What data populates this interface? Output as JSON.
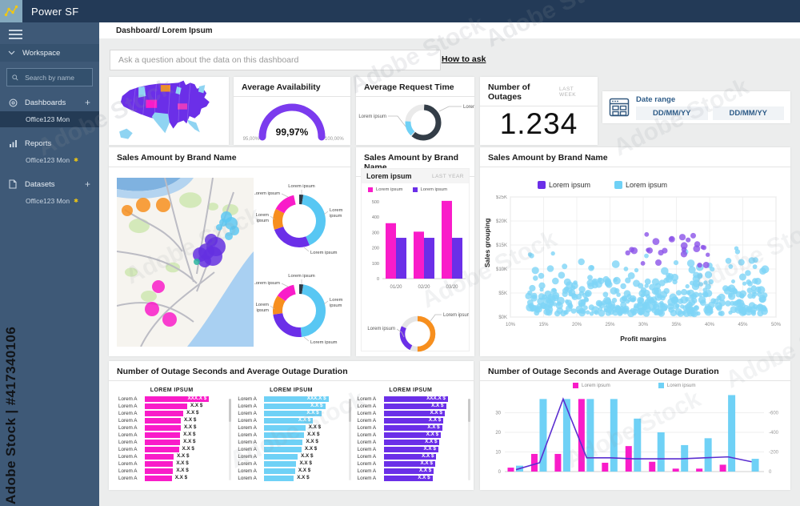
{
  "topbar": {
    "title": "Power SF"
  },
  "sidebar": {
    "workspace": "Workspace",
    "search_placeholder": "Search by name",
    "sections": [
      {
        "label": "Dashboards",
        "add": "+",
        "item": "Office123 Mon",
        "modified": ""
      },
      {
        "label": "Reports",
        "add": "",
        "item": "Office123 Mon",
        "modified": "✱"
      },
      {
        "label": "Datasets",
        "add": "+",
        "item": "Office123 Mon",
        "modified": "✱"
      }
    ]
  },
  "header": {
    "breadcrumb": "Dashboard/ Lorem Ipsum"
  },
  "qa": {
    "placeholder": "Ask a question about the data on this dashboard",
    "link_label": "How to ask"
  },
  "palette": {
    "magenta": "#F91CC9",
    "purple": "#6B2FE8",
    "light_blue": "#6FD1F6",
    "orange": "#F78F1E",
    "navy": "#2E3A46",
    "gauge_purple": "#7B3BEE",
    "line_purple": "#5B2ED0",
    "steel_blue": "#2E5C88",
    "accent_yellow": "#F2C811"
  },
  "cards": {
    "availability": {
      "title": "Average Availability",
      "value": "99,97%",
      "min": "95,00%",
      "max": "100,00%"
    },
    "request_time": {
      "title": "Average Request Time",
      "labels": [
        "Lorem ipsum",
        "Lorem ipsum"
      ],
      "slices": [
        {
          "c": "#333D47",
          "p": 60
        },
        {
          "c": "#6FD1F6",
          "p": 14
        }
      ]
    },
    "outages": {
      "title": "Number of Outages",
      "badge": "LAST WEEK",
      "value": "1.234"
    },
    "date_range": {
      "label": "Date range",
      "start_value": "DD/MM/YY",
      "end_value": "DD/MM/YY"
    },
    "sales_map": {
      "title": "Sales Amount by Brand Name",
      "bubbles": [
        {
          "x": 13,
          "y": 41,
          "r": 7,
          "c": "#F78F1E"
        },
        {
          "x": 33,
          "y": 34,
          "r": 9,
          "c": "#F78F1E"
        },
        {
          "x": 58,
          "y": 34,
          "r": 9,
          "c": "#F78F1E"
        },
        {
          "x": 137,
          "y": 49,
          "r": 7,
          "c": "#5EC8F2"
        },
        {
          "x": 143,
          "y": 57,
          "r": 8,
          "c": "#5EC8F2"
        },
        {
          "x": 133,
          "y": 56,
          "r": 5,
          "c": "#5EC8F2"
        },
        {
          "x": 147,
          "y": 66,
          "r": 6,
          "c": "#5EC8F2"
        },
        {
          "x": 140,
          "y": 73,
          "r": 5,
          "c": "#5EC8F2"
        },
        {
          "x": 128,
          "y": 62,
          "r": 4,
          "c": "#5EC8F2"
        },
        {
          "x": 118,
          "y": 78,
          "r": 8,
          "c": "#6430E0"
        },
        {
          "x": 124,
          "y": 86,
          "r": 12,
          "c": "#6430E0"
        },
        {
          "x": 112,
          "y": 92,
          "r": 10,
          "c": "#6430E0"
        },
        {
          "x": 104,
          "y": 96,
          "r": 9,
          "c": "#6430E0"
        },
        {
          "x": 120,
          "y": 98,
          "r": 12,
          "c": "#6430E0"
        },
        {
          "x": 110,
          "y": 104,
          "r": 8,
          "c": "#6430E0"
        },
        {
          "x": 100,
          "y": 105,
          "r": 4,
          "c": "#2BB5A0"
        },
        {
          "x": 52,
          "y": 136,
          "r": 8,
          "c": "#F91CC9"
        },
        {
          "x": 44,
          "y": 164,
          "r": 9,
          "c": "#F91CC9"
        },
        {
          "x": 66,
          "y": 177,
          "r": 9,
          "c": "#F91CC9"
        }
      ],
      "donuts": [
        {
          "slices": [
            {
              "c": "#2E3A46",
              "p": 2.5
            },
            {
              "c": "#58C7F3",
              "p": 41
            },
            {
              "c": "#6B2FE8",
              "p": 26
            },
            {
              "c": "#F78F1E",
              "p": 13
            },
            {
              "c": "#F91CC9",
              "p": 14
            }
          ],
          "labels": [
            "Lorem ipsum",
            "Lorem ipsum",
            "Lorem ipsum",
            "Lorem ipsum",
            "Lorem ipsum"
          ]
        },
        {
          "slices": [
            {
              "c": "#2E3A46",
              "p": 2.5
            },
            {
              "c": "#58C7F3",
              "p": 46
            },
            {
              "c": "#6B2FE8",
              "p": 24
            },
            {
              "c": "#F78F1E",
              "p": 12
            },
            {
              "c": "#F91CC9",
              "p": 12
            }
          ],
          "labels": [
            "Lorem ipsum",
            "Lorem ipsum",
            "Lorem ipsum",
            "Lorem ipsum",
            "Lorem ipsum"
          ]
        }
      ]
    },
    "sales_bar": {
      "title": "Sales Amount by Brand Name",
      "panel_title": "Lorem ipsum",
      "badge": "LAST YEAR",
      "categories": [
        "01/20",
        "02/20",
        "03/20"
      ],
      "series": [
        {
          "name": "Lorem ipsum",
          "color": "#F91CC9",
          "values": [
            360,
            305,
            505
          ]
        },
        {
          "name": "Lorem ipsum",
          "color": "#6B2FE8",
          "values": [
            265,
            265,
            265
          ]
        }
      ],
      "y_ticks": [
        0,
        100,
        200,
        300,
        400,
        500
      ],
      "y_max": 520,
      "donut": {
        "slices": [
          {
            "c": "#F78F1E",
            "p": 50,
            "s": 0
          },
          {
            "c": "#6B2FE8",
            "p": 25,
            "s": 57
          }
        ],
        "labels": [
          "Lorem ipsum",
          "Lorem ipsum"
        ]
      }
    },
    "sales_scatter": {
      "title": "Sales Amount by Brand Name",
      "legend": [
        {
          "label": "Lorem ipsum",
          "color": "#6B2FE8"
        },
        {
          "label": "Lorem ipsum",
          "color": "#6FD1F6"
        }
      ],
      "xlabel": "Profit margins",
      "ylabel": "Sales grouping",
      "x_ticks": [
        "10%",
        "15%",
        "20%",
        "25%",
        "30%",
        "35%",
        "40%",
        "45%",
        "50%"
      ],
      "y_ticks": [
        "$25K",
        "$20K",
        "$15K",
        "$10K",
        "$5K",
        "$0K"
      ],
      "x_domain": [
        10,
        50
      ],
      "y_domain": [
        0,
        25000
      ],
      "series": [
        {
          "name": "Lorem ipsum",
          "color": "#8B52E9",
          "count": 26,
          "x_range": [
            27.5,
            40
          ],
          "y_range": [
            10500,
            17200
          ],
          "r_range": [
            2.5,
            4.5
          ],
          "bias_low": false
        },
        {
          "name": "Lorem ipsum",
          "color": "#7ED5F6",
          "count": 400,
          "x_range": [
            12.5,
            48.5
          ],
          "y_range": [
            700,
            15200
          ],
          "r_range": [
            2.5,
            5
          ],
          "bias_low": true
        }
      ]
    },
    "outage_table": {
      "title": "Number of Outage Seconds and Average Outage Duration",
      "columns": [
        {
          "header": "LOREM IPSUM",
          "color": "#F91CC9",
          "rows": [
            {
              "label": "Lorem A",
              "value": "XXX.X $",
              "w": 100,
              "inside": true
            },
            {
              "label": "Lorem A",
              "value": "X.X $",
              "w": 66,
              "inside": false
            },
            {
              "label": "Lorem A",
              "value": "X.X $",
              "w": 60,
              "inside": false
            },
            {
              "label": "Lorem A",
              "value": "X.X $",
              "w": 56,
              "inside": false
            },
            {
              "label": "Lorem A",
              "value": "X.X $",
              "w": 56,
              "inside": false
            },
            {
              "label": "Lorem A",
              "value": "X.X $",
              "w": 55,
              "inside": false
            },
            {
              "label": "Lorem A",
              "value": "X.X $",
              "w": 55,
              "inside": false
            },
            {
              "label": "Lorem A",
              "value": "X.X $",
              "w": 53,
              "inside": false
            },
            {
              "label": "Lorem A",
              "value": "X.X $",
              "w": 45,
              "inside": false
            },
            {
              "label": "Lorem A",
              "value": "X.X $",
              "w": 44,
              "inside": false
            },
            {
              "label": "Lorem A",
              "value": "X.X $",
              "w": 44,
              "inside": false
            },
            {
              "label": "Lorem A",
              "value": "X.X $",
              "w": 42,
              "inside": false
            }
          ]
        },
        {
          "header": "LOREM IPSUM",
          "color": "#6FD1F6",
          "rows": [
            {
              "label": "Lorem A",
              "value": "XXX.X $",
              "w": 100,
              "inside": true
            },
            {
              "label": "Lorem A",
              "value": "X.X $",
              "w": 95,
              "inside": true
            },
            {
              "label": "Lorem A",
              "value": "X.X $",
              "w": 89,
              "inside": true
            },
            {
              "label": "Lorem A",
              "value": "X.X $",
              "w": 76,
              "inside": true
            },
            {
              "label": "Lorem A",
              "value": "X.X $",
              "w": 64,
              "inside": false
            },
            {
              "label": "Lorem A",
              "value": "X.X $",
              "w": 62,
              "inside": false
            },
            {
              "label": "Lorem A",
              "value": "X.X $",
              "w": 60,
              "inside": false
            },
            {
              "label": "Lorem A",
              "value": "X.X $",
              "w": 58,
              "inside": false
            },
            {
              "label": "Lorem A",
              "value": "X.X $",
              "w": 52,
              "inside": false
            },
            {
              "label": "Lorem A",
              "value": "X.X $",
              "w": 50,
              "inside": false
            },
            {
              "label": "Lorem A",
              "value": "X.X $",
              "w": 48,
              "inside": false
            },
            {
              "label": "Lorem A",
              "value": "X.X $",
              "w": 46,
              "inside": false
            }
          ]
        },
        {
          "header": "LOREM IPSUM",
          "color": "#6B2FE8",
          "rows": [
            {
              "label": "Lorem A",
              "value": "XXX.X $",
              "w": 100,
              "inside": true
            },
            {
              "label": "Lorem A",
              "value": "X.X $",
              "w": 97,
              "inside": true
            },
            {
              "label": "Lorem A",
              "value": "X.X $",
              "w": 95,
              "inside": true
            },
            {
              "label": "Lorem A",
              "value": "X.X $",
              "w": 93,
              "inside": true
            },
            {
              "label": "Lorem A",
              "value": "X.X $",
              "w": 91,
              "inside": true
            },
            {
              "label": "Lorem A",
              "value": "X.X $",
              "w": 89,
              "inside": true
            },
            {
              "label": "Lorem A",
              "value": "X.X $",
              "w": 87,
              "inside": true
            },
            {
              "label": "Lorem A",
              "value": "X.X $",
              "w": 85,
              "inside": true
            },
            {
              "label": "Lorem A",
              "value": "X.X $",
              "w": 82,
              "inside": true
            },
            {
              "label": "Lorem A",
              "value": "X.X $",
              "w": 80,
              "inside": true
            },
            {
              "label": "Lorem A",
              "value": "X.X $",
              "w": 78,
              "inside": true
            },
            {
              "label": "Lorem A",
              "value": "X.X $",
              "w": 76,
              "inside": true
            }
          ]
        }
      ]
    },
    "outage_combo": {
      "title": "Number of Outage Seconds and Average Outage Duration",
      "legend": [
        {
          "label": "Lorem ipsum",
          "color": "#F91CC9"
        },
        {
          "label": "Lorem ipsum",
          "color": "#6FD1F6"
        }
      ],
      "left_ticks": [
        "30",
        "20",
        "10",
        "0"
      ],
      "right_ticks": [
        "-600",
        "-400",
        "-200",
        "0"
      ],
      "left_max": 40,
      "bars_magenta": [
        2,
        9,
        9,
        37,
        4.5,
        13,
        5,
        1.5,
        1.5,
        3.5,
        0
      ],
      "bars_blue": [
        3,
        37,
        37,
        37,
        37,
        27,
        20,
        13.5,
        17,
        39,
        6.5
      ],
      "line": [
        1,
        4.5,
        37,
        7,
        7,
        6.5,
        6.5,
        6.5,
        7,
        7.5,
        5
      ],
      "line_color": "#5B2ED0"
    }
  },
  "watermark": {
    "vertical": "Adobe Stock | #417340106",
    "ghost": "Adobe Stock"
  }
}
